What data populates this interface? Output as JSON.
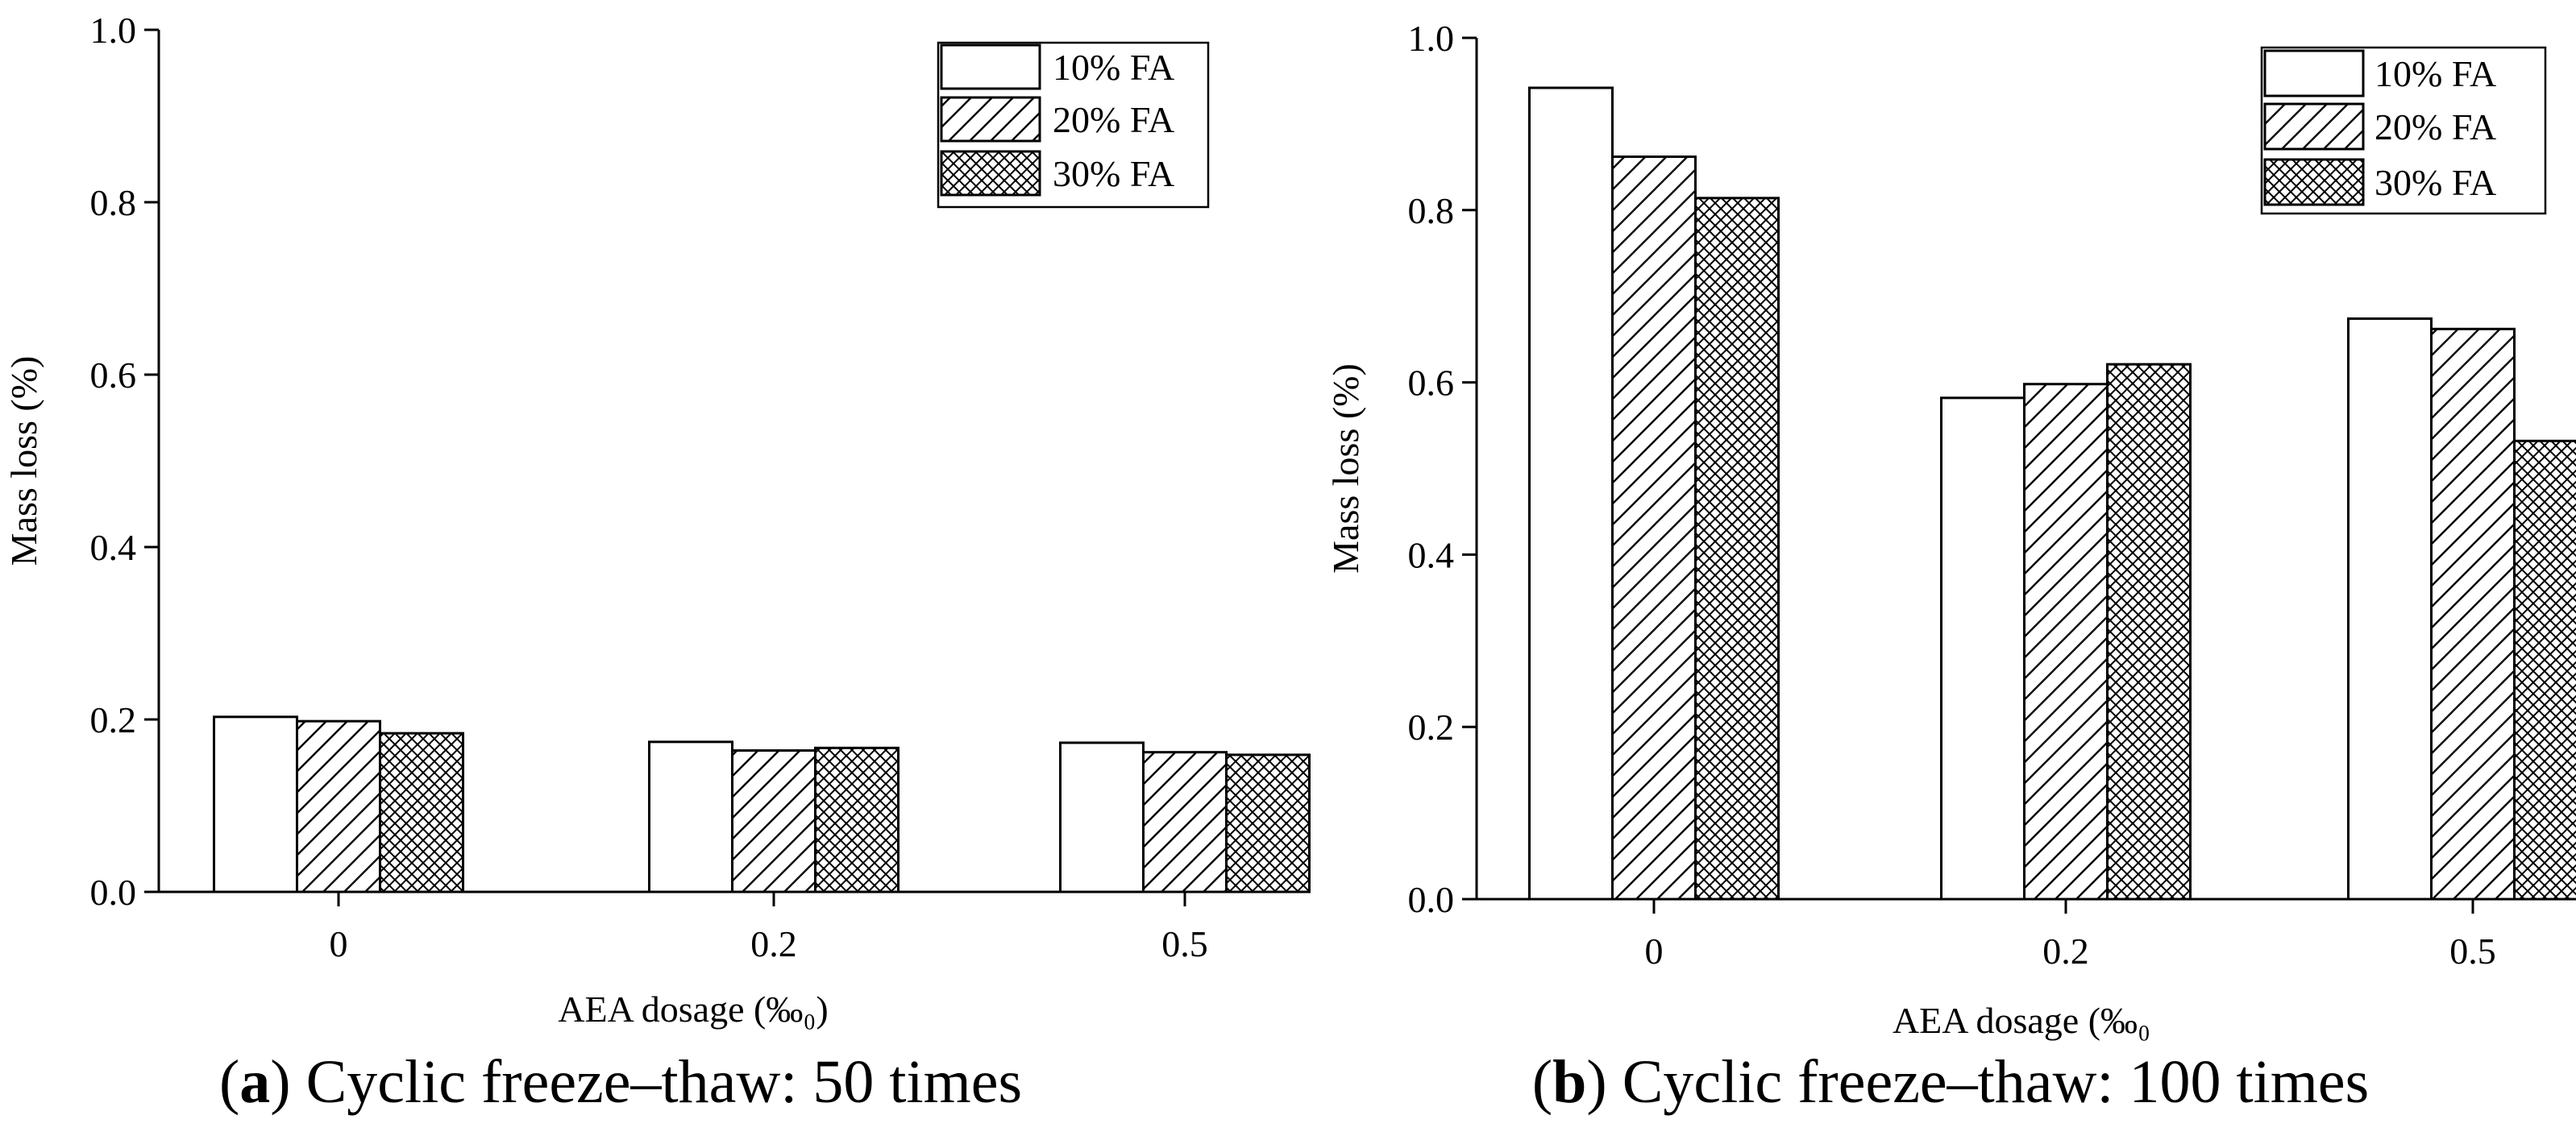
{
  "chart_data": [
    {
      "type": "bar",
      "panel_letter": "a",
      "caption": ") Cyclic freeze–thaw: 50 times",
      "categories": [
        "0",
        "0.2",
        "0.5"
      ],
      "series": [
        {
          "name": "10% FA",
          "pattern": "none",
          "values": [
            0.203,
            0.174,
            0.173
          ]
        },
        {
          "name": "20% FA",
          "pattern": "diagonal",
          "values": [
            0.198,
            0.164,
            0.162
          ]
        },
        {
          "name": "30% FA",
          "pattern": "crosshatch",
          "values": [
            0.184,
            0.167,
            0.159
          ]
        }
      ],
      "xlabel": "AEA dosage (‰₀)",
      "ylabel": "Mass loss (%)",
      "ylim": [
        0,
        1.0
      ],
      "yticks": [
        "0.0",
        "0.2",
        "0.4",
        "0.6",
        "0.8",
        "1.0"
      ],
      "legend_position": "top-right",
      "grid": false
    },
    {
      "type": "bar",
      "panel_letter": "b",
      "caption": ") Cyclic freeze–thaw: 100 times",
      "categories": [
        "0",
        "0.2",
        "0.5"
      ],
      "series": [
        {
          "name": "10% FA",
          "pattern": "none",
          "values": [
            0.942,
            0.582,
            0.674
          ]
        },
        {
          "name": "20% FA",
          "pattern": "diagonal",
          "values": [
            0.862,
            0.598,
            0.662
          ]
        },
        {
          "name": "30% FA",
          "pattern": "crosshatch",
          "values": [
            0.814,
            0.621,
            0.532
          ]
        }
      ],
      "xlabel": "AEA dosage (‰₀",
      "ylabel": "Mass loss (%)",
      "ylim": [
        0,
        1.0
      ],
      "yticks": [
        "0.0",
        "0.2",
        "0.4",
        "0.6",
        "0.8",
        "1.0"
      ],
      "legend_position": "top-right",
      "grid": false
    }
  ]
}
